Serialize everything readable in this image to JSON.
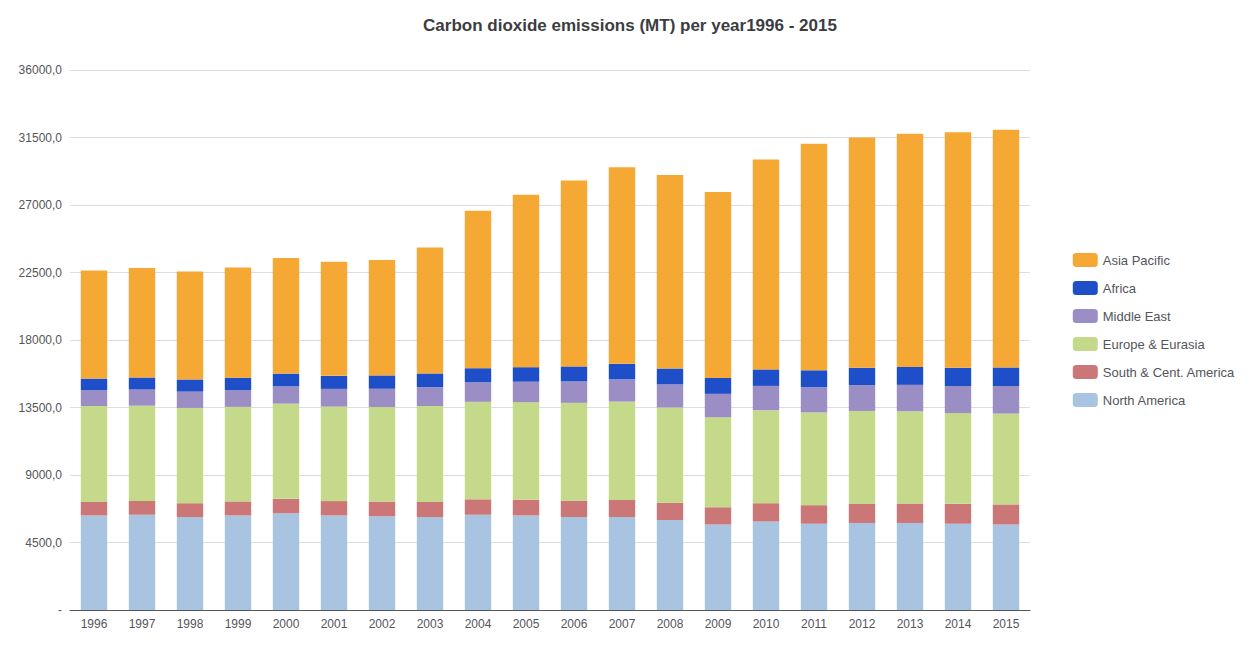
{
  "chart_data": {
    "type": "bar",
    "title": "Carbon dioxide emissions (MT) per year1996 - 2015",
    "stacked": true,
    "categories": [
      1996,
      1997,
      1998,
      1999,
      2000,
      2001,
      2002,
      2003,
      2004,
      2005,
      2006,
      2007,
      2008,
      2009,
      2010,
      2011,
      2012,
      2013,
      2014,
      2015
    ],
    "series": [
      {
        "name": "North America",
        "color": "#a8c4e0",
        "values": [
          6300,
          6350,
          6200,
          6300,
          6450,
          6300,
          6250,
          6200,
          6350,
          6300,
          6200,
          6200,
          6000,
          5700,
          5900,
          5750,
          5800,
          5800,
          5750,
          5700
        ]
      },
      {
        "name": "South & Cent. America",
        "color": "#cc7777",
        "values": [
          900,
          920,
          920,
          940,
          960,
          960,
          980,
          1000,
          1030,
          1060,
          1090,
          1140,
          1150,
          1150,
          1220,
          1240,
          1270,
          1300,
          1330,
          1340
        ]
      },
      {
        "name": "Europe & Eurasia",
        "color": "#c5d98b",
        "values": [
          6400,
          6350,
          6350,
          6300,
          6350,
          6300,
          6300,
          6400,
          6500,
          6500,
          6520,
          6550,
          6350,
          6000,
          6200,
          6180,
          6200,
          6150,
          6050,
          6050
        ]
      },
      {
        "name": "Middle East",
        "color": "#9b8ec4",
        "values": [
          1050,
          1080,
          1090,
          1120,
          1150,
          1180,
          1220,
          1260,
          1300,
          1360,
          1430,
          1490,
          1540,
          1560,
          1620,
          1680,
          1720,
          1760,
          1800,
          1840
        ]
      },
      {
        "name": "Africa",
        "color": "#1f4fc8",
        "values": [
          780,
          800,
          810,
          830,
          850,
          870,
          890,
          910,
          940,
          970,
          1000,
          1030,
          1060,
          1060,
          1100,
          1130,
          1160,
          1190,
          1220,
          1240
        ]
      },
      {
        "name": "Asia Pacific",
        "color": "#f5a834",
        "values": [
          7200,
          7300,
          7200,
          7350,
          7700,
          7600,
          7700,
          8400,
          10500,
          11500,
          12400,
          13100,
          12900,
          12400,
          14000,
          15100,
          15350,
          15550,
          15700,
          15850
        ]
      }
    ],
    "ylim": [
      0,
      36000
    ],
    "yticks": [
      {
        "value": 0,
        "label": "-"
      },
      {
        "value": 4500,
        "label": "4500,0"
      },
      {
        "value": 9000,
        "label": "9000,0"
      },
      {
        "value": 13500,
        "label": "13500,0"
      },
      {
        "value": 18000,
        "label": "18000,0"
      },
      {
        "value": 22500,
        "label": "22500,0"
      },
      {
        "value": 27000,
        "label": "27000,0"
      },
      {
        "value": 31500,
        "label": "31500,0"
      },
      {
        "value": 36000,
        "label": "36000,0"
      }
    ],
    "grid": true,
    "legend": "right"
  }
}
